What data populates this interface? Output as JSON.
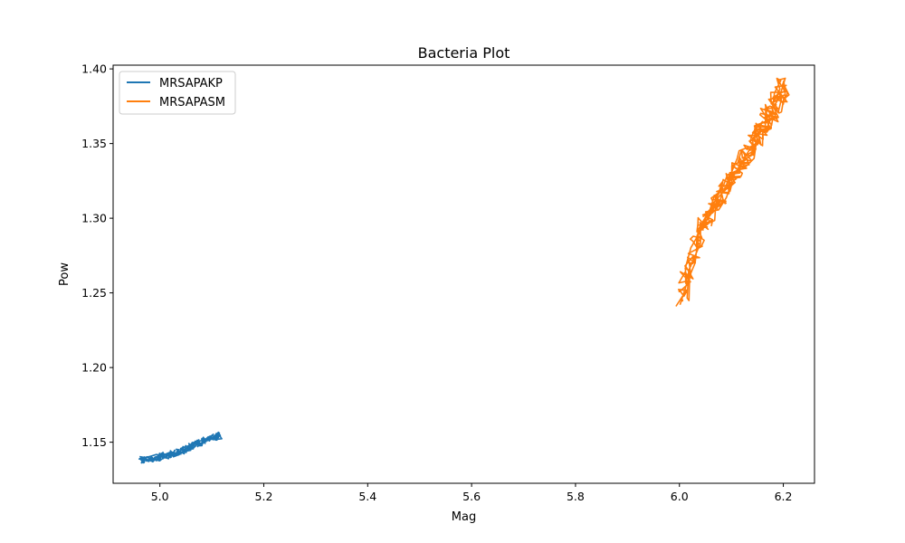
{
  "chart_data": {
    "type": "line",
    "title": "Bacteria Plot",
    "xlabel": "Mag",
    "ylabel": "Pow",
    "xlim": [
      4.91,
      6.26
    ],
    "ylim": [
      1.1225,
      1.4025
    ],
    "xticks": [
      5.0,
      5.2,
      5.4,
      5.6,
      5.8,
      6.0,
      6.2
    ],
    "xtick_labels": [
      "5.0",
      "5.2",
      "5.4",
      "5.6",
      "5.8",
      "6.0",
      "6.2"
    ],
    "yticks": [
      1.15,
      1.2,
      1.25,
      1.3,
      1.35,
      1.4
    ],
    "ytick_labels": [
      "1.15",
      "1.20",
      "1.25",
      "1.30",
      "1.35",
      "1.40"
    ],
    "grid": false,
    "legend_position": "top-left",
    "series": [
      {
        "name": "MRSAPAKP",
        "color": "#1f77b4",
        "x": [
          4.965,
          4.975,
          4.985,
          4.995,
          5.005,
          5.015,
          5.025,
          5.035,
          5.045,
          5.055,
          5.065,
          5.075,
          5.085,
          5.095,
          5.105,
          5.115
        ],
        "y": [
          1.1385,
          1.1378,
          1.1392,
          1.1398,
          1.1405,
          1.1412,
          1.1425,
          1.1432,
          1.1448,
          1.1462,
          1.1478,
          1.1495,
          1.1508,
          1.1522,
          1.1535,
          1.1545
        ]
      },
      {
        "name": "MRSAPASM",
        "color": "#ff7f0e",
        "x": [
          6.005,
          6.015,
          6.025,
          6.035,
          6.045,
          6.055,
          6.065,
          6.075,
          6.085,
          6.095,
          6.105,
          6.115,
          6.125,
          6.135,
          6.145,
          6.155,
          6.165,
          6.175,
          6.185,
          6.195,
          6.2
        ],
        "y": [
          1.245,
          1.262,
          1.27,
          1.285,
          1.295,
          1.3,
          1.308,
          1.312,
          1.318,
          1.322,
          1.328,
          1.334,
          1.34,
          1.346,
          1.352,
          1.358,
          1.364,
          1.37,
          1.376,
          1.382,
          1.389
        ]
      }
    ]
  }
}
